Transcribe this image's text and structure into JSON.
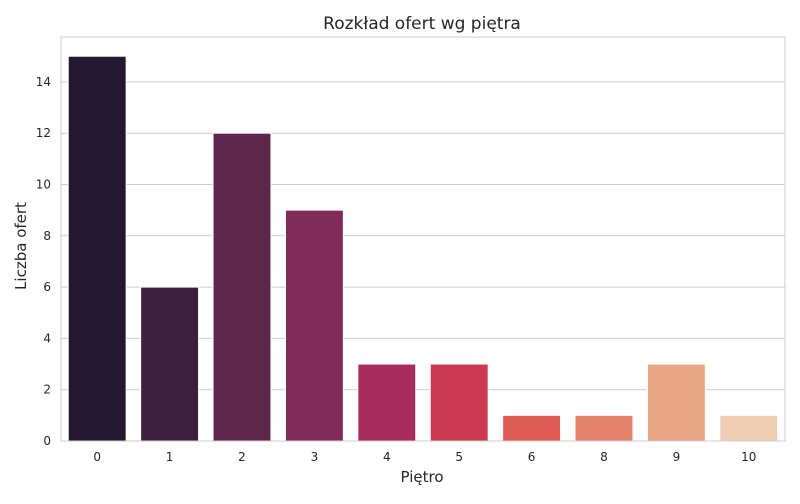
{
  "chart_data": {
    "type": "bar",
    "title": "Rozkład ofert wg piętra",
    "xlabel": "Piętro",
    "ylabel": "Liczba ofert",
    "categories": [
      "0",
      "1",
      "2",
      "3",
      "4",
      "5",
      "6",
      "8",
      "9",
      "10"
    ],
    "values": [
      15,
      6,
      12,
      9,
      3,
      3,
      1,
      1,
      3,
      1
    ],
    "colors": [
      "#221831",
      "#3e1f3f",
      "#5e264d",
      "#812b58",
      "#a82b5e",
      "#cb3a50",
      "#dc5c51",
      "#e4846a",
      "#e9a685",
      "#eecdb4"
    ],
    "ylim": [
      0,
      15.75
    ],
    "yticks": [
      0,
      2,
      4,
      6,
      8,
      10,
      12,
      14
    ],
    "grid": "horizontal"
  }
}
